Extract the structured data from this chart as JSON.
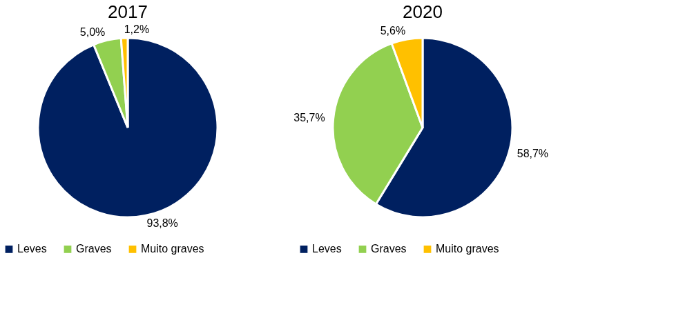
{
  "chart_data": [
    {
      "type": "pie",
      "title": "2017",
      "categories": [
        "Leves",
        "Graves",
        "Muito graves"
      ],
      "values": [
        93.8,
        5.0,
        1.2
      ],
      "colors": [
        "#002060",
        "#92d050",
        "#ffc000"
      ],
      "value_labels": [
        "93,8%",
        "5,0%",
        "1,2%"
      ],
      "legend": "bottom"
    },
    {
      "type": "pie",
      "title": "2020",
      "categories": [
        "Leves",
        "Graves",
        "Muito graves"
      ],
      "values": [
        58.7,
        35.7,
        5.6
      ],
      "colors": [
        "#002060",
        "#92d050",
        "#ffc000"
      ],
      "value_labels": [
        "58,7%",
        "35,7%",
        "5,6%"
      ],
      "legend": "bottom"
    }
  ]
}
